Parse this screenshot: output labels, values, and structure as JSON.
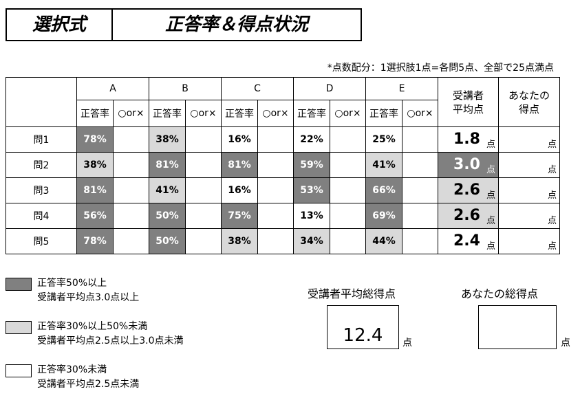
{
  "title": {
    "left": "選択式",
    "right": "正答率＆得点状況"
  },
  "note": "*点数配分：1選択肢1点=各問5点、全部で25点満点",
  "table": {
    "columns": [
      "A",
      "B",
      "C",
      "D",
      "E"
    ],
    "sub_rate": "正答率",
    "sub_ox": "○or×",
    "avg_header": "受講者\n平均点",
    "your_header": "あなたの\n得点",
    "unit": "点",
    "rows": [
      {
        "label": "問1",
        "rates": [
          "78%",
          "38%",
          "16%",
          "22%",
          "25%"
        ],
        "avg": "1.8"
      },
      {
        "label": "問2",
        "rates": [
          "38%",
          "81%",
          "81%",
          "59%",
          "41%"
        ],
        "avg": "3.0"
      },
      {
        "label": "問3",
        "rates": [
          "81%",
          "41%",
          "16%",
          "53%",
          "66%"
        ],
        "avg": "2.6"
      },
      {
        "label": "問4",
        "rates": [
          "56%",
          "50%",
          "75%",
          "13%",
          "69%"
        ],
        "avg": "2.6"
      },
      {
        "label": "問5",
        "rates": [
          "78%",
          "50%",
          "38%",
          "34%",
          "44%"
        ],
        "avg": "2.4"
      }
    ]
  },
  "colors": {
    "dark": "#808080",
    "light": "#d9d9d9",
    "none": "#ffffff"
  },
  "legend": [
    {
      "line1": "正答率50%以上",
      "line2": "受講者平均点3.0点以上"
    },
    {
      "line1": "正答率30%以上50%未満",
      "line2": "受講者平均点2.5点以上3.0点未満"
    },
    {
      "line1": "正答率30%未満",
      "line2": "受講者平均点2.5点未満"
    }
  ],
  "totals": {
    "avg_label": "受講者平均総得点",
    "avg_value": "12.4",
    "your_label": "あなたの総得点",
    "your_value": "",
    "unit": "点"
  }
}
